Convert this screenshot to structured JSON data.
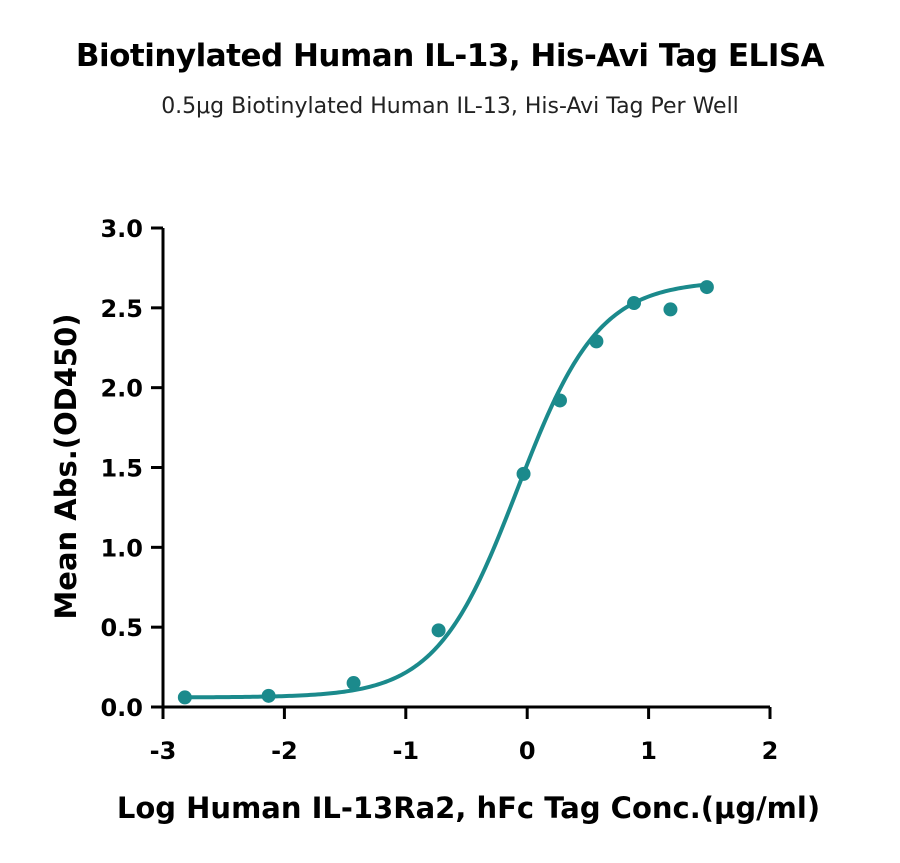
{
  "chart_data": {
    "type": "scatter",
    "title": "Biotinylated Human IL-13, His-Avi Tag ELISA",
    "subtitle": "0.5μg Biotinylated Human IL-13, His-Avi Tag Per Well",
    "xlabel": "Log Human IL-13Ra2, hFc Tag Conc.(μg/ml)",
    "ylabel": "Mean Abs.(OD450)",
    "xlim": [
      -3,
      2
    ],
    "ylim": [
      0,
      3
    ],
    "xticks": [
      -3,
      -2,
      -1,
      0,
      1,
      2
    ],
    "xtick_labels": [
      "-3",
      "-2",
      "-1",
      "0",
      "1",
      "2"
    ],
    "yticks": [
      0,
      0.5,
      1,
      1.5,
      2,
      2.5,
      3
    ],
    "ytick_labels": [
      "0.0",
      "0.5",
      "1.0",
      "1.5",
      "2.0",
      "2.5",
      "3.0"
    ],
    "grid": false,
    "series": [
      {
        "points": [
          {
            "x": -2.82,
            "y": 0.06
          },
          {
            "x": -2.13,
            "y": 0.07
          },
          {
            "x": -1.43,
            "y": 0.15
          },
          {
            "x": -0.73,
            "y": 0.48
          },
          {
            "x": -0.03,
            "y": 1.46
          },
          {
            "x": 0.27,
            "y": 1.92
          },
          {
            "x": 0.57,
            "y": 2.29
          },
          {
            "x": 0.88,
            "y": 2.53
          },
          {
            "x": 1.18,
            "y": 2.49
          },
          {
            "x": 1.48,
            "y": 2.63
          }
        ],
        "fit": {
          "model": "4PL",
          "bottom": 0.06,
          "top": 2.67,
          "logEC50": -0.08,
          "hill": 1.3,
          "range": [
            -2.82,
            1.48
          ]
        }
      }
    ],
    "color": "#1b8a8c"
  }
}
